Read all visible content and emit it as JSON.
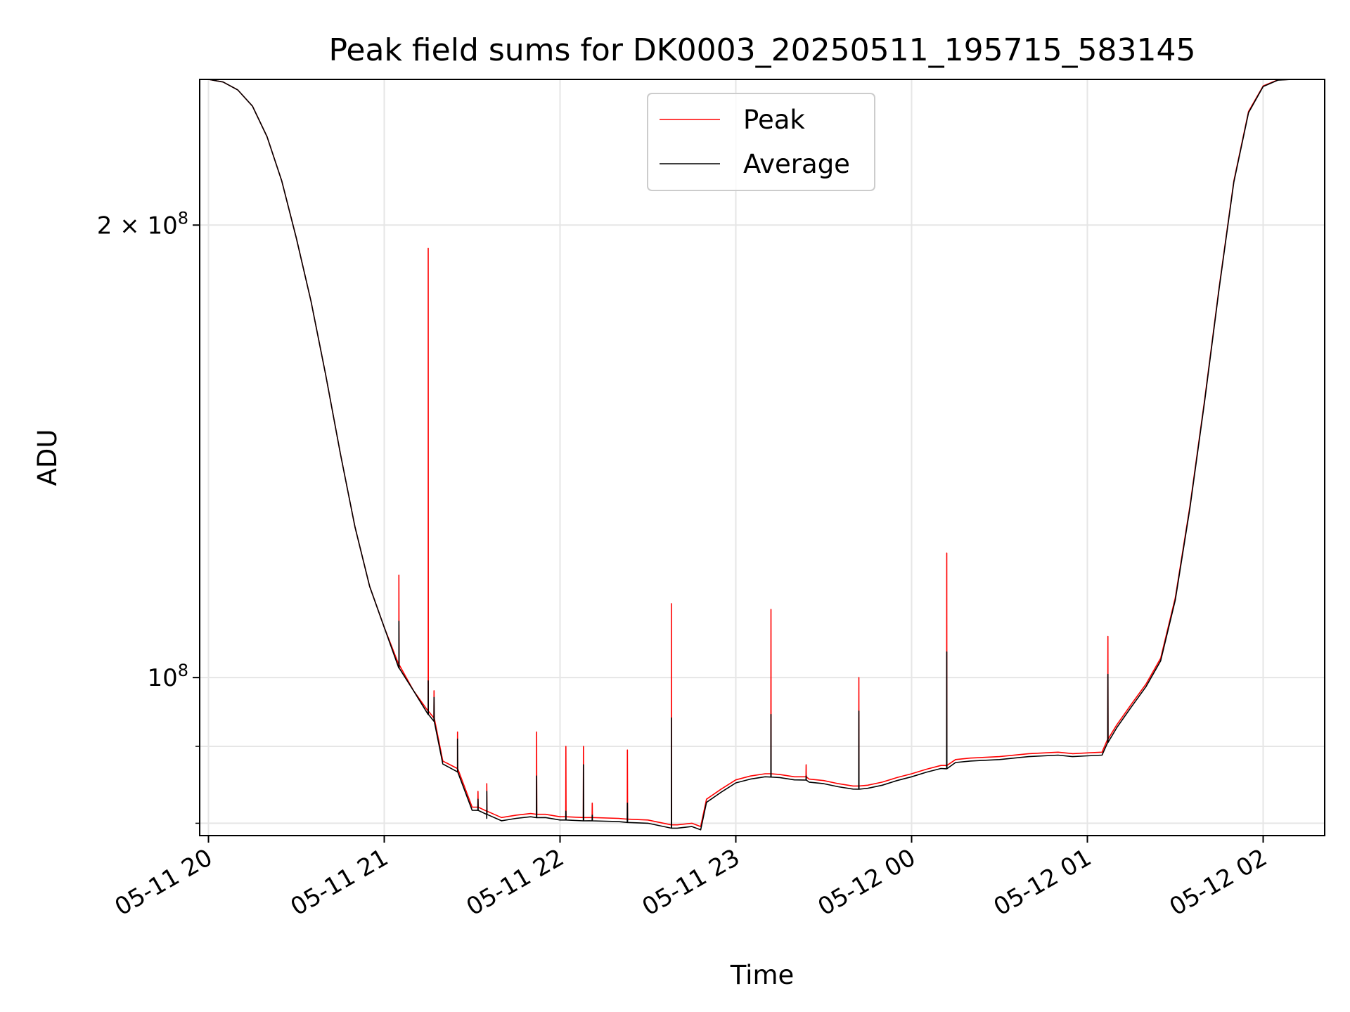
{
  "chart_data": {
    "type": "line",
    "title": "Peak field sums for DK0003_20250511_195715_583145",
    "xlabel": "Time",
    "ylabel": "ADU",
    "xlim": [
      "2025-05-11 19:57",
      "2025-05-12 02:21"
    ],
    "ylim": [
      78500000,
      250000000
    ],
    "yscale": "log",
    "grid": true,
    "legend": "upper center",
    "x_ticks": [
      "05-11 20",
      "05-11 21",
      "05-11 22",
      "05-11 23",
      "05-12 00",
      "05-12 01",
      "05-12 02"
    ],
    "y_ticks": [
      {
        "value": 200000000,
        "base": "2 × 10",
        "exp": "8"
      },
      {
        "value": 100000000,
        "base": "10",
        "exp": "8"
      }
    ],
    "y_minor_ticks": [
      80000000,
      90000000
    ],
    "x": [
      "19:57",
      "20:00",
      "20:05",
      "20:10",
      "20:15",
      "20:20",
      "20:25",
      "20:30",
      "20:35",
      "20:40",
      "20:45",
      "20:50",
      "20:55",
      "21:00",
      "21:05",
      "21:10",
      "21:15",
      "21:20",
      "21:25",
      "21:30",
      "21:35",
      "21:40",
      "21:45",
      "21:50",
      "21:55",
      "22:00",
      "22:10",
      "22:20",
      "22:30",
      "22:38",
      "22:40",
      "22:45",
      "22:48",
      "22:50",
      "22:55",
      "23:00",
      "23:05",
      "23:10",
      "23:15",
      "23:20",
      "23:25",
      "23:30",
      "23:35",
      "23:40",
      "23:45",
      "23:50",
      "23:55",
      "00:00",
      "00:05",
      "00:10",
      "00:15",
      "00:20",
      "00:30",
      "00:40",
      "00:50",
      "00:55",
      "01:00",
      "01:05",
      "01:10",
      "01:15",
      "01:20",
      "01:25",
      "01:30",
      "01:35",
      "01:40",
      "01:45",
      "01:50",
      "01:55",
      "02:00",
      "02:05",
      "02:10",
      "02:15",
      "02:21"
    ],
    "series": [
      {
        "name": "Peak",
        "color": "#ff0000",
        "values": [
          250000000,
          250000000,
          249000000,
          246000000,
          240000000,
          229000000,
          214000000,
          196000000,
          178000000,
          159000000,
          141000000,
          126000000,
          115000000,
          108000000,
          102000000,
          98000000,
          95000000,
          88000000,
          87000000,
          82000000,
          81000000,
          80700000,
          81000000,
          81200000,
          81100000,
          80800000,
          80700000,
          80600000,
          80400000,
          79800000,
          79800000,
          80000000,
          79600000,
          83000000,
          84300000,
          85500000,
          86000000,
          86300000,
          86200000,
          85900000,
          85600000,
          85400000,
          85000000,
          84700000,
          84800000,
          85200000,
          85800000,
          86300000,
          86900000,
          87400000,
          88200000,
          88400000,
          88600000,
          89000000,
          89200000,
          89000000,
          89100000,
          89200000,
          93000000,
          96000000,
          99000000,
          103000000,
          113000000,
          130000000,
          153000000,
          182000000,
          214000000,
          238000000,
          247500000,
          249800000,
          250000000,
          250000000,
          250000000
        ]
      },
      {
        "name": "Average",
        "color": "#000000",
        "values": [
          250000000,
          250000000,
          249000000,
          246000000,
          240000000,
          229000000,
          214000000,
          196000000,
          178000000,
          159000000,
          141000000,
          126000000,
          115000000,
          108000000,
          102000000,
          98000000,
          95000000,
          87600000,
          86600000,
          81600000,
          80600000,
          80300000,
          80600000,
          80800000,
          80700000,
          80400000,
          80300000,
          80200000,
          80000000,
          79400000,
          79400000,
          79600000,
          79200000,
          82600000,
          83900000,
          85100000,
          85600000,
          85900000,
          85800000,
          85500000,
          85200000,
          85000000,
          84600000,
          84300000,
          84400000,
          84800000,
          85400000,
          85900000,
          86500000,
          87000000,
          87800000,
          88000000,
          88200000,
          88600000,
          88800000,
          88600000,
          88700000,
          88800000,
          92600000,
          95600000,
          98600000,
          102600000,
          112600000,
          129600000,
          152600000,
          181600000,
          213600000,
          237600000,
          247300000,
          249700000,
          250000000,
          250000000,
          250000000
        ]
      }
    ],
    "spikes": [
      {
        "x": "21:05",
        "base": 102000000,
        "peak": 117000000,
        "average": 109000000
      },
      {
        "x": "21:15",
        "base": 95000000,
        "peak": 193000000,
        "average": 99500000
      },
      {
        "x": "21:17",
        "base": 94000000,
        "peak": 98000000,
        "average": 97000000
      },
      {
        "x": "21:25",
        "base": 87000000,
        "peak": 92000000,
        "average": 91000000
      },
      {
        "x": "21:32",
        "base": 82000000,
        "peak": 84000000,
        "average": 83000000
      },
      {
        "x": "21:35",
        "base": 81500000,
        "peak": 85000000,
        "average": 84000000
      },
      {
        "x": "21:52",
        "base": 81100000,
        "peak": 92000000,
        "average": 86000000
      },
      {
        "x": "22:02",
        "base": 80800000,
        "peak": 90000000,
        "average": 81500000
      },
      {
        "x": "22:08",
        "base": 80700000,
        "peak": 90000000,
        "average": 87500000
      },
      {
        "x": "22:11",
        "base": 80700000,
        "peak": 82500000,
        "average": 81000000
      },
      {
        "x": "22:23",
        "base": 80500000,
        "peak": 89500000,
        "average": 82500000
      },
      {
        "x": "22:38",
        "base": 79800000,
        "peak": 112000000,
        "average": 94000000
      },
      {
        "x": "23:12",
        "base": 86300000,
        "peak": 111000000,
        "average": 94500000
      },
      {
        "x": "23:24",
        "base": 85900000,
        "peak": 87500000,
        "average": 86000000
      },
      {
        "x": "23:42",
        "base": 84700000,
        "peak": 100000000,
        "average": 95000000
      },
      {
        "x": "00:12",
        "base": 87400000,
        "peak": 121000000,
        "average": 104000000
      },
      {
        "x": "01:07",
        "base": 91000000,
        "peak": 106500000,
        "average": 100500000
      }
    ]
  }
}
